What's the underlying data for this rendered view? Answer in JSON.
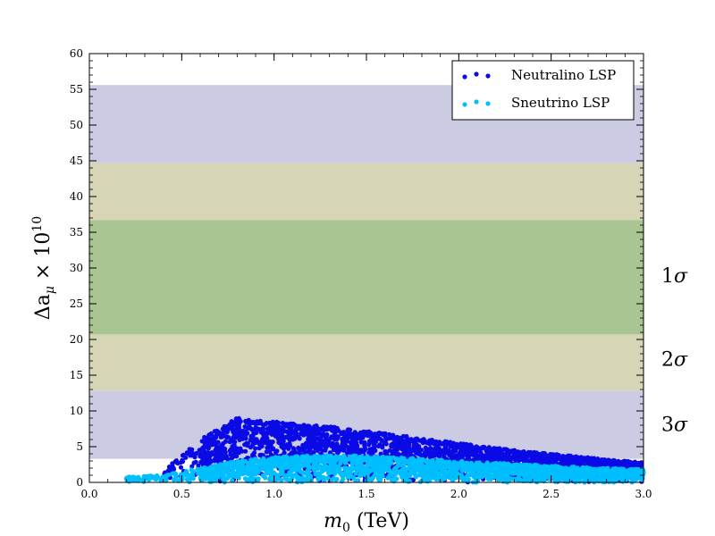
{
  "chart_data": {
    "type": "scatter",
    "xlabel_main": "m",
    "xlabel_sub": "0",
    "xlabel_unit": " (TeV)",
    "ylabel_main": "Δa",
    "ylabel_sub": "μ",
    "ylabel_times": " × 10",
    "ylabel_sup": "10",
    "xlim": [
      0.0,
      3.0
    ],
    "ylim": [
      0,
      60
    ],
    "x_ticks": [
      0.0,
      0.5,
      1.0,
      1.5,
      2.0,
      2.5,
      3.0
    ],
    "x_tick_labels": [
      "0.0",
      "0.5",
      "1.0",
      "1.5",
      "2.0",
      "2.5",
      "3.0"
    ],
    "y_ticks": [
      0,
      5,
      10,
      15,
      20,
      25,
      30,
      35,
      40,
      45,
      50,
      55,
      60
    ],
    "y_tick_labels": [
      "0",
      "5",
      "10",
      "15",
      "20",
      "25",
      "30",
      "35",
      "40",
      "45",
      "50",
      "55",
      "60"
    ],
    "bands": [
      {
        "name": "1σ",
        "inner_range": [
          20.7,
          36.7
        ],
        "color": "#a9c592"
      },
      {
        "name": "2σ",
        "lower": [
          12.8,
          20.7
        ],
        "upper": [
          36.7,
          44.7
        ],
        "color": "#d6d6b6"
      },
      {
        "name": "3σ",
        "lower": [
          3.3,
          12.8
        ],
        "upper": [
          44.7,
          55.6
        ],
        "color": "#cbcbe4"
      }
    ],
    "band_labels": [
      {
        "label": "1σ",
        "y": 29.0
      },
      {
        "label": "2σ",
        "y": 17.3
      },
      {
        "label": "3σ",
        "y": 8.2
      }
    ],
    "series": [
      {
        "name": "Neutralino LSP",
        "color": "#0a0ae6",
        "envelope_x": [
          0.4,
          0.5,
          0.6,
          0.8,
          1.0,
          1.3,
          1.5,
          1.8,
          2.0,
          2.3,
          2.5,
          2.8,
          3.0
        ],
        "envelope_y_max": [
          1.5,
          4.0,
          6.0,
          9.0,
          8.5,
          7.8,
          7.2,
          6.2,
          5.5,
          4.5,
          4.0,
          3.2,
          2.8
        ]
      },
      {
        "name": "Sneutrino LSP",
        "color": "#00bfff",
        "envelope_x": [
          0.2,
          0.4,
          0.6,
          0.8,
          1.0,
          1.3,
          1.5,
          1.8,
          2.0,
          2.3,
          2.5,
          2.8,
          3.0
        ],
        "envelope_y_max": [
          0.8,
          1.0,
          2.0,
          3.0,
          3.6,
          3.8,
          3.7,
          3.3,
          3.0,
          2.6,
          2.3,
          2.0,
          1.8
        ]
      }
    ],
    "legend": {
      "position": "top-right",
      "entries": [
        "Neutralino LSP",
        "Sneutrino LSP"
      ]
    },
    "grid": false
  }
}
